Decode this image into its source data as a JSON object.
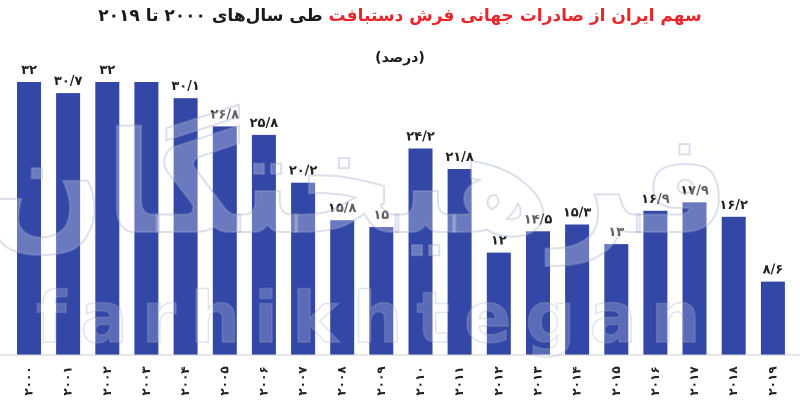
{
  "chart_data": {
    "type": "bar",
    "title_part1": "سهم ایران از صادرات جهانی فرش دستبافت",
    "title_part2": "طی سال‌های ۲۰۰۰ تا ۲۰۱۹",
    "subtitle": "(درصد)",
    "categories": [
      "۲۰۰۰",
      "۲۰۰۱",
      "۲۰۰۲",
      "۲۰۰۳",
      "۲۰۰۴",
      "۲۰۰۵",
      "۲۰۰۶",
      "۲۰۰۷",
      "۲۰۰۸",
      "۲۰۰۹",
      "۲۰۱۰",
      "۲۰۱۱",
      "۲۰۱۲",
      "۲۰۱۳",
      "۲۰۱۴",
      "۲۰۱۵",
      "۲۰۱۶",
      "۲۰۱۷",
      "۲۰۱۸",
      "۲۰۱۹"
    ],
    "values": [
      32,
      30.7,
      32,
      32,
      30.1,
      26.8,
      25.8,
      20.2,
      15.8,
      15,
      24.2,
      21.8,
      12,
      14.5,
      15.3,
      13,
      16.9,
      17.9,
      16.2,
      8.6
    ],
    "value_labels": [
      "۳۲",
      "۳۰/۷",
      "۳۲",
      "",
      "۳۰/۱",
      "۲۶/۸",
      "۲۵/۸",
      "۲۰/۲",
      "۱۵/۸",
      "۱۵",
      "۲۴/۲",
      "۲۱/۸",
      "۱۲",
      "۱۴/۵",
      "۱۵/۳",
      "۱۳",
      "۱۶/۹",
      "۱۷/۹",
      "۱۶/۲",
      "۸/۶"
    ],
    "ylim": [
      0,
      32
    ],
    "bar_color": "#3347a6",
    "title_accent_color": "#e8262b",
    "grid": false,
    "legend": "none"
  },
  "watermark": {
    "logo_text": "فرهیختگان",
    "site_text": "farhikhtegan"
  }
}
